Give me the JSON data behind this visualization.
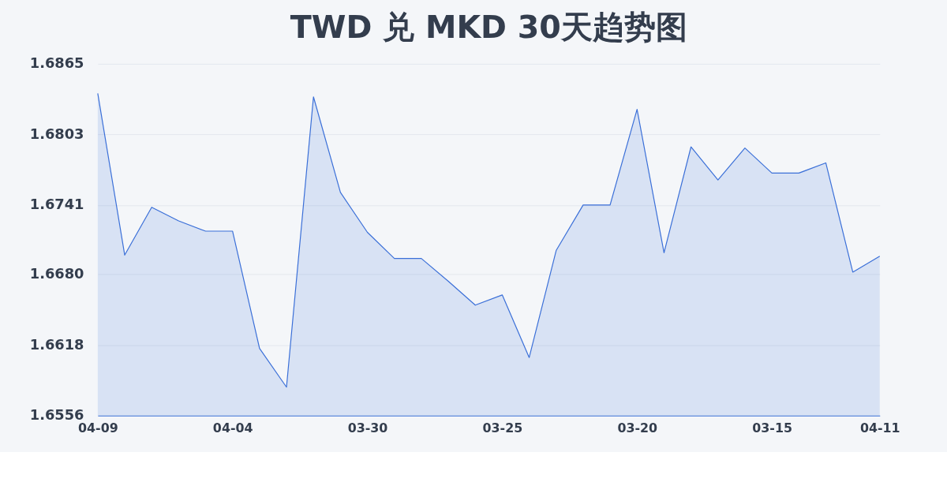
{
  "chart_data": {
    "type": "area",
    "title": "TWD 兑 MKD 30天趋势图",
    "categories": [
      "04-09",
      null,
      null,
      null,
      null,
      "04-04",
      null,
      null,
      null,
      null,
      "03-30",
      null,
      null,
      null,
      null,
      "03-25",
      null,
      null,
      null,
      null,
      "03-20",
      null,
      null,
      null,
      null,
      "03-15",
      null,
      null,
      null,
      "04-11"
    ],
    "series": [
      {
        "color": "#3a6fd8",
        "values": [
          1.6839,
          1.6697,
          1.6739,
          1.6727,
          1.6718,
          1.6718,
          1.6615,
          1.6581,
          1.6836,
          1.6752,
          1.6717,
          1.6694,
          1.6694,
          1.6674,
          1.6653,
          1.6662,
          1.6607,
          1.6701,
          1.6741,
          1.6741,
          1.6825,
          1.6699,
          1.6792,
          1.6763,
          1.6791,
          1.6769,
          1.6769,
          1.6778,
          1.6682,
          1.6696
        ]
      }
    ],
    "ylim": [
      1.6556,
      1.6865
    ],
    "yticks": [
      1.6556,
      1.6618,
      {
        "value": 1.668,
        "label": "1.6680"
      },
      1.6741,
      1.6803,
      1.6865
    ],
    "grid": "y",
    "legend": false,
    "marker": "none",
    "line_style": "solid"
  }
}
